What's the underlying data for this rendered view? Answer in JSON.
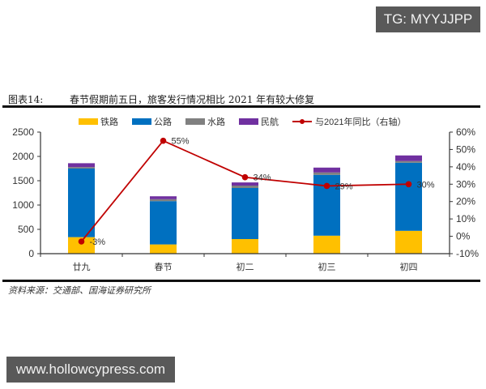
{
  "watermark_top": "TG: MYYJJPP",
  "watermark_bottom": "www.hollowcypress.com",
  "figure": {
    "label": "图表14:",
    "title": "春节假期前五日，旅客发行情况相比 2021 年有较大修复",
    "source": "资料来源：交通部、国海证券研究所"
  },
  "chart_data": {
    "type": "bar",
    "stacked": true,
    "title": "春节假期前五日，旅客发行情况相比 2021 年有较大修复",
    "categories": [
      "廿九",
      "春节",
      "初二",
      "初三",
      "初四"
    ],
    "series": [
      {
        "name": "铁路",
        "color": "#FFC000",
        "values": [
          340,
          190,
          300,
          370,
          470
        ]
      },
      {
        "name": "公路",
        "color": "#0070C0",
        "values": [
          1410,
          890,
          1050,
          1250,
          1400
        ]
      },
      {
        "name": "水路",
        "color": "#808080",
        "values": [
          30,
          40,
          50,
          50,
          35
        ]
      },
      {
        "name": "民航",
        "color": "#7030A0",
        "values": [
          80,
          60,
          65,
          100,
          115
        ]
      }
    ],
    "line_series": {
      "name": "与2021年同比（右轴）",
      "color": "#C00000",
      "axis": "right",
      "values": [
        -3,
        55,
        34,
        29,
        30
      ],
      "labels": [
        "-3%",
        "55%",
        "34%",
        "29%",
        "30%"
      ]
    },
    "left_axis": {
      "ylim": [
        0,
        2500
      ],
      "ticks": [
        "0",
        "500",
        "1000",
        "1500",
        "2000",
        "2500"
      ]
    },
    "right_axis": {
      "ylim": [
        -10,
        60
      ],
      "ticks": [
        "-10%",
        "0%",
        "10%",
        "20%",
        "30%",
        "40%",
        "50%",
        "60%"
      ]
    },
    "legend_position": "top",
    "grid": false,
    "xlabel": "",
    "ylabel": ""
  }
}
